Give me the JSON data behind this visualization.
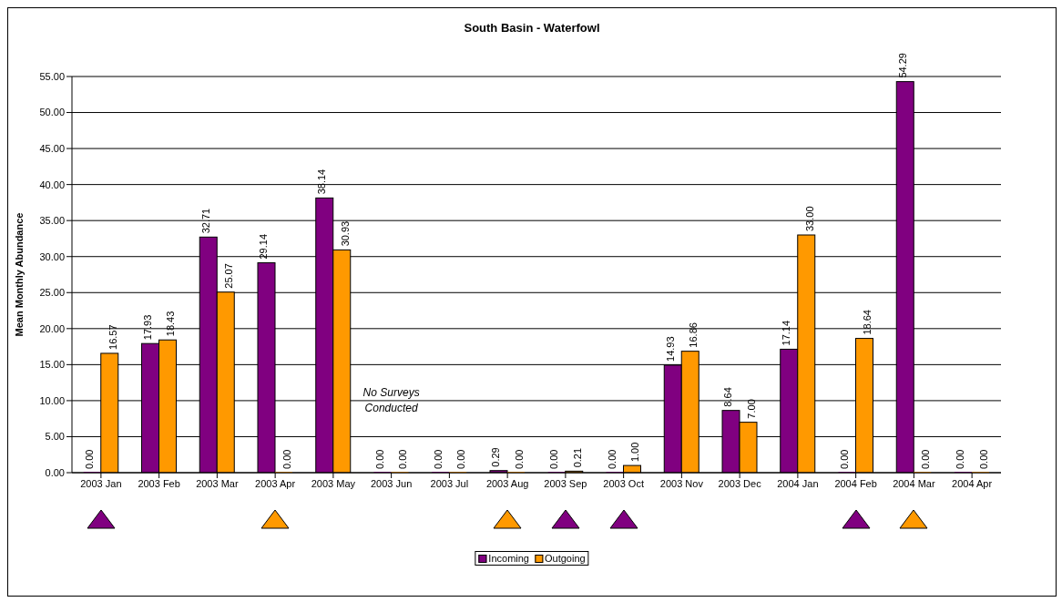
{
  "chart_data": {
    "type": "bar",
    "title": "South Basin - Waterfowl",
    "ylabel": "Mean Monthly Abundance",
    "categories": [
      "2003 Jan",
      "2003 Feb",
      "2003 Mar",
      "2003 Apr",
      "2003 May",
      "2003 Jun",
      "2003 Jul",
      "2003 Aug",
      "2003 Sep",
      "2003 Oct",
      "2003 Nov",
      "2003 Dec",
      "2004 Jan",
      "2004 Feb",
      "2004 Mar",
      "2004 Apr"
    ],
    "series": [
      {
        "name": "Incoming",
        "color": "#800080",
        "values": [
          0,
          17.93,
          32.71,
          29.14,
          38.14,
          0,
          0,
          0.29,
          0,
          0,
          14.93,
          8.64,
          17.14,
          0,
          54.29,
          0
        ],
        "value_labels": [
          "0.00",
          "17.93",
          "32.71",
          "29.14",
          "38.14",
          "0.00",
          "0.00",
          "0.29",
          "0.00",
          "0.00",
          "14.93",
          "8.64",
          "17.14",
          "0.00",
          "54.29",
          "0.00"
        ]
      },
      {
        "name": "Outgoing",
        "color": "#ff9900",
        "values": [
          16.57,
          18.43,
          25.07,
          0,
          30.93,
          0,
          0,
          0,
          0.21,
          1.0,
          16.86,
          7.0,
          33.0,
          18.64,
          0,
          0
        ],
        "value_labels": [
          "16.57",
          "18.43",
          "25.07",
          "0.00",
          "30.93",
          "0.00",
          "0.00",
          "0.00",
          "0.21",
          "1.00",
          "16.86",
          "7.00",
          "33.00",
          "18.64",
          "0.00",
          "0.00"
        ]
      }
    ],
    "ylim": [
      0,
      55
    ],
    "yticks": [
      {
        "value": 0,
        "label": "0.00"
      },
      {
        "value": 5,
        "label": "5.00"
      },
      {
        "value": 10,
        "label": "10.00"
      },
      {
        "value": 15,
        "label": "15.00"
      },
      {
        "value": 20,
        "label": "20.00"
      },
      {
        "value": 25,
        "label": "25.00"
      },
      {
        "value": 30,
        "label": "30.00"
      },
      {
        "value": 35,
        "label": "35.00"
      },
      {
        "value": 40,
        "label": "40.00"
      },
      {
        "value": 45,
        "label": "45.00"
      },
      {
        "value": 50,
        "label": "50.00"
      },
      {
        "value": 55,
        "label": "55.00"
      }
    ],
    "grid": "y",
    "legend": "bottom",
    "annotations": [
      "No Surveys Conducted"
    ]
  }
}
